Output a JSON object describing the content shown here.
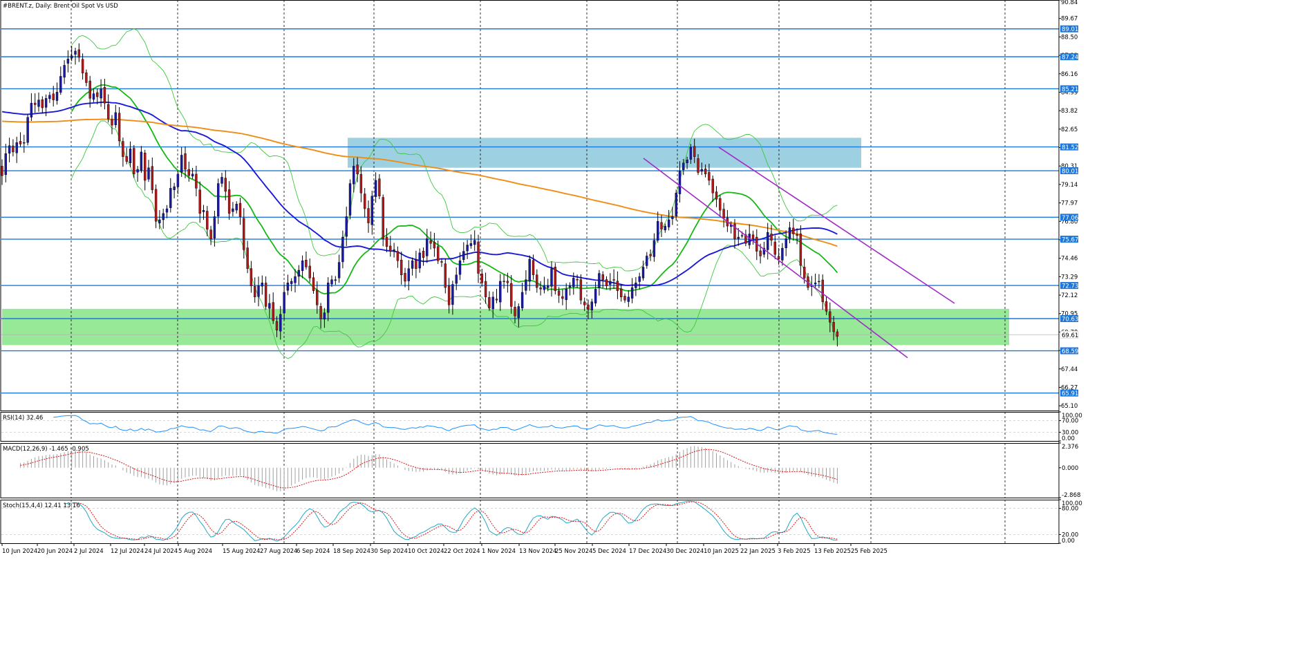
{
  "title": "#BRENT.z, Daily:  Brent Oil Spot Vs USD",
  "colors": {
    "bull": "#1a1aa8",
    "bear": "#b21818",
    "ma_blue": "#1a1ad8",
    "ma_green": "#14b814",
    "ma_orange": "#f08c14",
    "bollinger": "#3cc83c",
    "hline": "#1e78dc",
    "channel": "#a02ac8",
    "zone_blue": "#8cc8dc",
    "zone_green": "#8ce68c",
    "rsi": "#1e90ff",
    "macd_hist": "#a0a0a0",
    "signal": "#dc1414",
    "stoch_main": "#20a8c8"
  },
  "chart_data": [
    {
      "type": "candlestick",
      "name": "price",
      "symbol": "#BRENT.z",
      "timeframe": "Daily",
      "description": "Brent Oil Spot Vs USD",
      "ylim": [
        64.8,
        90.84
      ],
      "y_ticks": [
        "90.84",
        "89.67",
        "88.50",
        "87.33",
        "86.16",
        "84.99",
        "83.82",
        "82.65",
        "81.48",
        "80.31",
        "79.14",
        "77.97",
        "76.80",
        "75.63",
        "74.46",
        "73.29",
        "72.12",
        "70.95",
        "69.78",
        "68.61",
        "67.44",
        "66.27",
        "65.10"
      ],
      "x_labels": [
        "10 Jun 2024",
        "20 Jun 2024",
        "2 Jul 2024",
        "12 Jul 2024",
        "24 Jul 2024",
        "5 Aug 2024",
        "15 Aug 2024",
        "27 Aug 2024",
        "6 Sep 2024",
        "18 Sep 2024",
        "30 Sep 2024",
        "10 Oct 2024",
        "22 Oct 2024",
        "1 Nov 2024",
        "13 Nov 2024",
        "25 Nov 2024",
        "5 Dec 2024",
        "17 Dec 2024",
        "30 Dec 2024",
        "10 Jan 2025",
        "22 Jan 2025",
        "3 Feb 2025",
        "13 Feb 2025",
        "25 Feb 2025"
      ],
      "level_lines": [
        "89.01",
        "87.24",
        "85.21",
        "81.52",
        "80.01",
        "77.06",
        "75.67",
        "72.73",
        "70.63",
        "68.59",
        "65.91"
      ],
      "current_price": "69.61",
      "closes": [
        79.7,
        81.1,
        81.6,
        81.2,
        81.8,
        81.7,
        81.8,
        83.4,
        84.3,
        84.2,
        84.5,
        84.0,
        84.6,
        84.8,
        84.5,
        85.0,
        86.0,
        86.7,
        87.1,
        87.3,
        87.6,
        87.2,
        86.2,
        85.6,
        84.6,
        84.9,
        84.7,
        85.2,
        84.3,
        83.3,
        82.9,
        83.7,
        81.9,
        80.9,
        80.6,
        81.4,
        79.8,
        80.1,
        81.2,
        79.4,
        80.2,
        78.8,
        76.8,
        76.9,
        77.3,
        77.6,
        78.9,
        79.0,
        79.8,
        81.0,
        80.1,
        79.7,
        79.8,
        78.9,
        77.3,
        77.5,
        76.3,
        75.7,
        77.1,
        79.2,
        79.6,
        78.7,
        77.3,
        77.6,
        77.9,
        77.1,
        75.0,
        73.8,
        72.7,
        72.0,
        72.7,
        72.9,
        71.4,
        71.6,
        70.5,
        69.9,
        70.9,
        72.3,
        72.9,
        73.0,
        73.3,
        73.7,
        74.3,
        73.9,
        73.2,
        72.4,
        71.5,
        70.6,
        71.0,
        72.9,
        73.1,
        73.1,
        74.2,
        75.8,
        77.1,
        79.2,
        80.3,
        79.8,
        78.6,
        77.6,
        76.7,
        78.4,
        79.4,
        78.4,
        75.7,
        75.2,
        74.9,
        75.0,
        74.3,
        73.4,
        73.0,
        73.8,
        74.3,
        73.8,
        74.8,
        74.5,
        75.7,
        75.4,
        75.1,
        74.3,
        74.2,
        72.6,
        71.5,
        72.8,
        73.4,
        74.3,
        74.9,
        75.3,
        75.4,
        75.6,
        73.5,
        72.9,
        72.0,
        71.3,
        72.0,
        71.8,
        73.0,
        73.0,
        72.9,
        71.4,
        70.8,
        71.4,
        72.3,
        73.1,
        74.4,
        73.4,
        72.6,
        72.5,
        72.7,
        72.7,
        73.8,
        72.4,
        72.1,
        71.9,
        72.5,
        72.7,
        73.2,
        73.1,
        71.8,
        71.5,
        71.2,
        71.7,
        72.5,
        73.5,
        73.1,
        72.7,
        73.0,
        73.1,
        72.4,
        72.0,
        71.8,
        72.0,
        72.6,
        72.9,
        73.3,
        73.9,
        74.6,
        74.6,
        75.6,
        76.8,
        76.3,
        76.5,
        76.9,
        77.1,
        78.6,
        80.0,
        80.5,
        80.7,
        81.5,
        80.9,
        79.9,
        80.1,
        79.8,
        79.4,
        78.6,
        78.2,
        77.5,
        77.0,
        76.5,
        76.6,
        75.7,
        75.8,
        75.9,
        75.4,
        76.0,
        75.7,
        74.9,
        74.6,
        75.1,
        76.1,
        75.6,
        74.7,
        74.4,
        75.1,
        75.7,
        76.4,
        76.0,
        75.9,
        74.0,
        73.2,
        72.6,
        72.7,
        72.9,
        73.0,
        71.7,
        71.1,
        70.4,
        69.8,
        69.5
      ],
      "moving_averages": [
        "blue",
        "green",
        "orange"
      ],
      "zones": [
        "blue-resistance-zone",
        "green-support-zone"
      ]
    },
    {
      "type": "line",
      "name": "RSI",
      "label": "RSI(14) 32.46",
      "ylim": [
        0,
        100
      ],
      "y_ticks": [
        "100.00",
        "70.00",
        "30.00",
        "0.00"
      ],
      "levels": [
        70,
        30
      ],
      "last_value": 32.46
    },
    {
      "type": "bar",
      "name": "MACD",
      "label": "MACD(12,26,9) -1.465 -0.905",
      "ylim": [
        -2.868,
        2.376
      ],
      "y_ticks": [
        "2.376",
        "0.000",
        "-2.868"
      ],
      "last_values": [
        -1.465,
        -0.905
      ]
    },
    {
      "type": "line",
      "name": "Stochastic",
      "label": "Stoch(15,4,4) 12.41 13.16",
      "ylim": [
        0,
        100
      ],
      "y_ticks": [
        "100.00",
        "80.00",
        "20.00",
        "0.00"
      ],
      "levels": [
        80,
        20
      ],
      "last_values": [
        12.41,
        13.16
      ]
    }
  ]
}
